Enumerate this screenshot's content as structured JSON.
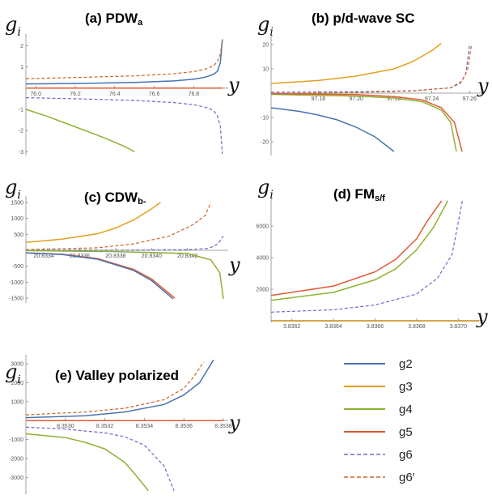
{
  "colors": {
    "g2": "#4a72b0",
    "g3": "#e3a01e",
    "g4": "#8db232",
    "g5": "#e05a33",
    "g6": "#6e6acb",
    "g6p": "#c8672a"
  },
  "legend": [
    {
      "key": "g2",
      "label": "g2",
      "dash": false
    },
    {
      "key": "g3",
      "label": "g3",
      "dash": false
    },
    {
      "key": "g4",
      "label": "g4",
      "dash": false
    },
    {
      "key": "g5",
      "label": "g5",
      "dash": false
    },
    {
      "key": "g6",
      "label": "g6",
      "dash": true
    },
    {
      "key": "g6p",
      "label": "g6′",
      "dash": true
    }
  ],
  "chart_data": [
    {
      "type": "line",
      "title": "(a) PDW",
      "title_sub": "a",
      "ylabel": "g",
      "ylabel_sub": "i",
      "xlabel": "y",
      "xlim": [
        75.95,
        76.95
      ],
      "ylim": [
        -3.1,
        2.4
      ],
      "xticks": [
        "76.0",
        "76.2",
        "76.4",
        "76.6",
        "76.8"
      ],
      "yticks": [
        "2",
        "1",
        "-1",
        "-2",
        "-3"
      ],
      "series": [
        {
          "key": "g2",
          "x": [
            75.95,
            76.2,
            76.5,
            76.7,
            76.8,
            76.86,
            76.9,
            76.92,
            76.935,
            76.945
          ],
          "y": [
            0.2,
            0.22,
            0.27,
            0.34,
            0.42,
            0.52,
            0.65,
            0.8,
            1.2,
            2.3
          ]
        },
        {
          "key": "g6p",
          "x": [
            75.95,
            76.2,
            76.5,
            76.7,
            76.8,
            76.86,
            76.9,
            76.92,
            76.935,
            76.945
          ],
          "y": [
            0.45,
            0.5,
            0.58,
            0.68,
            0.78,
            0.9,
            1.05,
            1.25,
            1.6,
            2.3
          ]
        },
        {
          "key": "g5",
          "x": [
            75.95,
            76.5,
            76.945
          ],
          "y": [
            0.0,
            0.0,
            0.0
          ]
        },
        {
          "key": "g6",
          "x": [
            75.95,
            76.2,
            76.5,
            76.7,
            76.8,
            76.86,
            76.9,
            76.92,
            76.935,
            76.945
          ],
          "y": [
            -0.45,
            -0.5,
            -0.58,
            -0.68,
            -0.78,
            -0.9,
            -1.05,
            -1.3,
            -1.8,
            -3.1
          ]
        },
        {
          "key": "g4",
          "x": [
            75.95,
            76.05,
            76.15,
            76.25,
            76.35,
            76.45,
            76.5
          ],
          "y": [
            -1.0,
            -1.3,
            -1.65,
            -2.0,
            -2.35,
            -2.75,
            -3.0
          ]
        }
      ]
    },
    {
      "type": "line",
      "title": "(b) p/d-wave  SC",
      "ylabel": "g",
      "ylabel_sub": "i",
      "xlabel": "y",
      "xlim": [
        97.155,
        97.265
      ],
      "ylim": [
        -25,
        23
      ],
      "xticks": [
        "97.18",
        "97.20",
        "97.22",
        "97.24",
        "97.26"
      ],
      "yticks": [
        "20",
        "10",
        "-10",
        "-20"
      ],
      "series": [
        {
          "key": "g3",
          "x": [
            97.155,
            97.18,
            97.2,
            97.22,
            97.23,
            97.24,
            97.245
          ],
          "y": [
            4.0,
            5.2,
            7.0,
            10.0,
            13.0,
            17.5,
            20.5
          ]
        },
        {
          "key": "g2",
          "x": [
            97.155,
            97.17,
            97.18,
            97.19,
            97.2,
            97.21,
            97.22
          ],
          "y": [
            -6.0,
            -7.5,
            -9.0,
            -11.0,
            -14.0,
            -18.0,
            -24.0
          ]
        },
        {
          "key": "g6",
          "x": [
            97.155,
            97.2,
            97.23,
            97.25,
            97.255,
            97.258,
            97.26
          ],
          "y": [
            0.4,
            0.6,
            1.0,
            2.2,
            4.0,
            8.0,
            20.0
          ]
        },
        {
          "key": "g6p",
          "x": [
            97.155,
            97.2,
            97.23,
            97.25,
            97.256,
            97.259,
            97.261
          ],
          "y": [
            -0.3,
            0.3,
            0.9,
            2.2,
            5.0,
            10.0,
            20.0
          ]
        },
        {
          "key": "g4",
          "x": [
            97.155,
            97.2,
            97.22,
            97.235,
            97.245,
            97.25,
            97.253
          ],
          "y": [
            -0.5,
            -1.2,
            -2.0,
            -3.5,
            -7.0,
            -12.0,
            -24.0
          ]
        },
        {
          "key": "g5",
          "x": [
            97.155,
            97.2,
            97.22,
            97.235,
            97.245,
            97.252,
            97.256
          ],
          "y": [
            -0.2,
            -0.6,
            -1.4,
            -2.8,
            -6.0,
            -12.0,
            -24.0
          ]
        }
      ]
    },
    {
      "type": "line",
      "title": "(c) CDW",
      "title_sub": "b-",
      "ylabel": "g",
      "ylabel_sub": "i",
      "xlabel": "y",
      "xlim": [
        20.8333,
        20.8344
      ],
      "ylim": [
        -1600,
        1600
      ],
      "xticks": [
        "20.8334",
        "20.8336",
        "20.8338",
        "20.8340",
        "20.8342"
      ],
      "yticks": [
        "1500",
        "1000",
        "500",
        "-500",
        "-1000",
        "-1500"
      ],
      "series": [
        {
          "key": "g3",
          "x": [
            20.8333,
            20.8335,
            20.8337,
            20.8338,
            20.8339,
            20.834,
            20.83405
          ],
          "y": [
            250,
            350,
            520,
            700,
            950,
            1300,
            1500
          ]
        },
        {
          "key": "g6p",
          "x": [
            20.8333,
            20.8337,
            20.8339,
            20.8341,
            20.83423,
            20.8343,
            20.83433
          ],
          "y": [
            20,
            80,
            200,
            450,
            800,
            1100,
            1500
          ]
        },
        {
          "key": "g6",
          "x": [
            20.8333,
            20.8338,
            20.8342,
            20.83432,
            20.83437,
            20.8344
          ],
          "y": [
            0,
            5,
            20,
            60,
            200,
            450
          ]
        },
        {
          "key": "g5",
          "x": [
            20.8333,
            20.8335,
            20.8337,
            20.8339,
            20.834,
            20.83413
          ],
          "y": [
            -80,
            -120,
            -260,
            -600,
            -900,
            -1500
          ]
        },
        {
          "key": "g2",
          "x": [
            20.8333,
            20.8335,
            20.8337,
            20.8339,
            20.834,
            20.83412
          ],
          "y": [
            -80,
            -130,
            -280,
            -630,
            -950,
            -1520
          ]
        },
        {
          "key": "g4",
          "x": [
            20.8333,
            20.8338,
            20.8342,
            20.83433,
            20.83438,
            20.8344
          ],
          "y": [
            -10,
            -40,
            -100,
            -300,
            -700,
            -1520
          ]
        }
      ]
    },
    {
      "type": "line",
      "title": "(d) FM",
      "title_sub": "s/f",
      "ylabel": "g",
      "ylabel_sub": "i",
      "xlabel": "y",
      "xlim": [
        3.8361,
        3.8371
      ],
      "ylim": [
        0,
        7700
      ],
      "xticks": [
        "3.8362",
        "3.8364",
        "3.8366",
        "3.8368",
        "3.8370"
      ],
      "yticks": [
        "6000",
        "4000",
        "2000"
      ],
      "series": [
        {
          "key": "g5",
          "x": [
            3.8361,
            3.8364,
            3.8366,
            3.8367,
            3.8368,
            3.83685,
            3.83692
          ],
          "y": [
            1600,
            2200,
            3100,
            3900,
            5200,
            6300,
            7600
          ]
        },
        {
          "key": "g4",
          "x": [
            3.8361,
            3.8364,
            3.8366,
            3.8367,
            3.8368,
            3.83688,
            3.83695
          ],
          "y": [
            1300,
            1800,
            2600,
            3300,
            4500,
            5900,
            7600
          ]
        },
        {
          "key": "g6",
          "x": [
            3.8361,
            3.8364,
            3.8366,
            3.8368,
            3.8369,
            3.83697,
            3.83702
          ],
          "y": [
            550,
            700,
            1000,
            1700,
            2700,
            4200,
            7600
          ]
        },
        {
          "key": "g2",
          "x": [
            3.8361,
            3.8371
          ],
          "y": [
            0,
            0
          ]
        },
        {
          "key": "g3",
          "x": [
            3.8361,
            3.8371
          ],
          "y": [
            0,
            0
          ]
        }
      ]
    },
    {
      "type": "line",
      "title": "(e) Valley polarized",
      "ylabel": "g",
      "ylabel_sub": "i",
      "xlabel": "y",
      "xlim": [
        8.3528,
        8.3538
      ],
      "ylim": [
        -3800,
        3300
      ],
      "xticks": [
        "8.3530",
        "8.3532",
        "8.3534",
        "8.3536",
        "8.3538"
      ],
      "yticks": [
        "3000",
        "2000",
        "1000",
        "-1000",
        "-2000",
        "-3000"
      ],
      "series": [
        {
          "key": "g6p",
          "x": [
            8.3528,
            8.3531,
            8.3533,
            8.3535,
            8.3536,
            8.35365,
            8.3537
          ],
          "y": [
            300,
            450,
            650,
            1100,
            1700,
            2300,
            3100
          ]
        },
        {
          "key": "g2",
          "x": [
            8.3528,
            8.3531,
            8.3533,
            8.3535,
            8.3536,
            8.35368,
            8.35375
          ],
          "y": [
            150,
            250,
            450,
            850,
            1350,
            2000,
            3200
          ]
        },
        {
          "key": "g5",
          "x": [
            8.3528,
            8.3538
          ],
          "y": [
            0,
            0
          ]
        },
        {
          "key": "g6",
          "x": [
            8.3528,
            8.353,
            8.3532,
            8.3533,
            8.3534,
            8.3535,
            8.35355
          ],
          "y": [
            -350,
            -450,
            -650,
            -850,
            -1300,
            -2400,
            -3700
          ]
        },
        {
          "key": "g4",
          "x": [
            8.3528,
            8.353,
            8.3531,
            8.3532,
            8.3533,
            8.35335,
            8.35342
          ],
          "y": [
            -700,
            -900,
            -1150,
            -1500,
            -2200,
            -2800,
            -3700
          ]
        }
      ]
    }
  ]
}
